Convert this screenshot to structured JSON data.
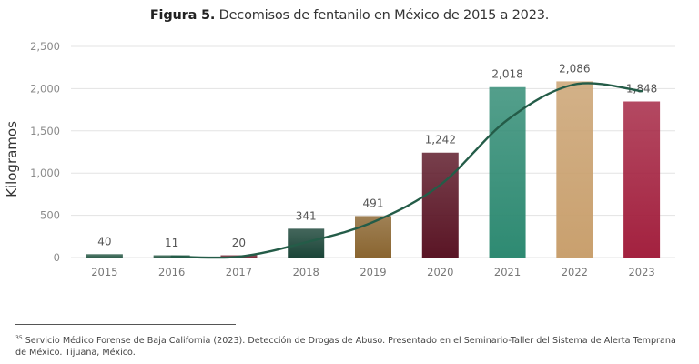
{
  "figure": {
    "label": "Figura 5.",
    "caption": "Decomisos de fentanilo en México de 2015 a 2023."
  },
  "chart_data": {
    "type": "bar",
    "title": "Figura 5. Decomisos de fentanilo en México de 2015 a 2023.",
    "xlabel": "",
    "ylabel": "Kilogramos",
    "ylim": [
      0,
      2500
    ],
    "yticks": [
      0,
      500,
      1000,
      1500,
      2000,
      2500
    ],
    "ytick_labels": [
      "0",
      "500",
      "1,000",
      "1,500",
      "2,000",
      "2,500"
    ],
    "grid": true,
    "categories": [
      "2015",
      "2016",
      "2017",
      "2018",
      "2019",
      "2020",
      "2021",
      "2022",
      "2023"
    ],
    "values": [
      40,
      11,
      20,
      341,
      491,
      1242,
      2018,
      2086,
      1848
    ],
    "value_labels": [
      "40",
      "11",
      "20",
      "341",
      "491",
      "1,242",
      "2,018",
      "2,086",
      "1,848"
    ],
    "bar_colors": [
      "#2f5e4c",
      "#2f5e4c",
      "#7a2a3a",
      "#1b4538",
      "#8a6530",
      "#5a1525",
      "#2e8a72",
      "#c9a06e",
      "#a3213f"
    ],
    "trendline": {
      "type": "line",
      "color": "#245c48",
      "x": [
        "2016",
        "2017",
        "2018",
        "2019",
        "2020",
        "2021",
        "2022",
        "2023"
      ],
      "values": [
        12,
        10,
        180,
        420,
        860,
        1630,
        2050,
        1970
      ]
    }
  },
  "footnote": {
    "marker": "35",
    "text": "Servicio Médico Forense de Baja California (2023). Detección de Drogas de Abuso. Presentado en el Seminario-Taller del Sistema de Alerta Temprana de México. Tijuana, México."
  }
}
